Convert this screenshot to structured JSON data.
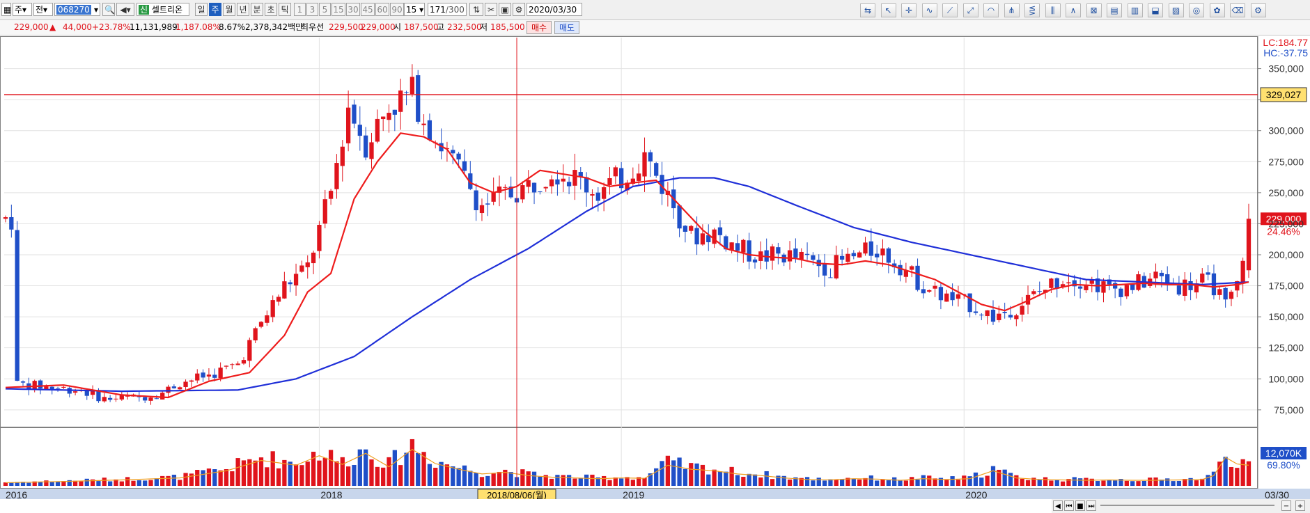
{
  "toolbar": {
    "market": "주",
    "type": "전",
    "code": "068270",
    "badge": "신",
    "name": "셀트리온",
    "periods": [
      "일",
      "주",
      "월",
      "년",
      "분",
      "초",
      "틱"
    ],
    "active_period": "주",
    "intervals": [
      "1",
      "3",
      "5",
      "15",
      "30",
      "45",
      "60",
      "90"
    ],
    "interval_value": "15",
    "count": "171",
    "count_total": "/300",
    "date": "2020/03/30",
    "tool_icons": [
      "refresh-icon",
      "cursor-icon",
      "crosshair-icon",
      "line-icon",
      "trend-line-icon",
      "ray-icon",
      "arc-icon",
      "fan-icon",
      "fibonacci-icon",
      "vertical-lines-icon",
      "triangle-icon",
      "grid-icon",
      "envelope-icon",
      "channel-icon",
      "marker-icon",
      "fill-icon",
      "circle-icon",
      "palette-icon",
      "eraser-icon",
      "settings-icon"
    ]
  },
  "quote": {
    "price": "229,000",
    "change": "44,000",
    "change_pct": "+23.78%",
    "volume": "11,131,989",
    "volume_pct": "1,187.08%",
    "turnover_pct": "8.67%",
    "amount": "2,378,342백만",
    "pref_label": "최우선",
    "ask": "229,500",
    "bid": "229,000",
    "open_label": "시",
    "open": "187,500",
    "high_label": "고",
    "high": "232,500",
    "low_label": "저",
    "low": "185,500",
    "buy_label": "매수",
    "sell_label": "매도",
    "up_arrow": "▲"
  },
  "chart_data": {
    "type": "candlestick",
    "title": "",
    "interval": "weekly",
    "x_labels": [
      "2016",
      "2018",
      "2019",
      "2020",
      "03/30"
    ],
    "y_ticks": [
      75000,
      100000,
      125000,
      150000,
      175000,
      200000,
      225000,
      250000,
      275000,
      300000,
      325000,
      350000
    ],
    "y_tick_labels": [
      "75,000",
      "100,000",
      "125,000",
      "150,000",
      "175,000",
      "200,000",
      "225,000",
      "250,000",
      "275,000",
      "300,000",
      "",
      "350,000"
    ],
    "ylim": [
      62000,
      375000
    ],
    "lc": "LC:184.77",
    "hc": "HC:-37.75",
    "hline_value": 329027,
    "hline_label": "329,027",
    "last_price_label": "229,000",
    "last_change_label": "24.46%",
    "crosshair_date": "2018/08/06(월)",
    "ma_red": "short moving average",
    "ma_blue": "long moving average",
    "volume_label": "12,070K",
    "volume_pct_label": "69.80%",
    "anchors": [
      [
        2,
        96000
      ],
      [
        8,
        93000
      ],
      [
        13,
        91000
      ],
      [
        17,
        84000
      ],
      [
        23,
        85000
      ],
      [
        27,
        89000
      ],
      [
        30,
        97000
      ],
      [
        35,
        103000
      ],
      [
        40,
        112000
      ],
      [
        44,
        145000
      ],
      [
        48,
        175000
      ],
      [
        52,
        190000
      ],
      [
        56,
        250000
      ],
      [
        59,
        320000
      ],
      [
        62,
        290000
      ],
      [
        66,
        320000
      ],
      [
        70,
        330000
      ],
      [
        74,
        295000
      ],
      [
        78,
        268000
      ],
      [
        82,
        240000
      ],
      [
        86,
        248000
      ],
      [
        90,
        255000
      ],
      [
        94,
        270000
      ],
      [
        98,
        262000
      ],
      [
        102,
        250000
      ],
      [
        106,
        262000
      ],
      [
        110,
        280000
      ],
      [
        114,
        248000
      ],
      [
        118,
        215000
      ],
      [
        122,
        218000
      ],
      [
        126,
        205000
      ],
      [
        130,
        198000
      ],
      [
        134,
        200000
      ],
      [
        138,
        195000
      ],
      [
        142,
        190000
      ],
      [
        146,
        198000
      ],
      [
        150,
        205000
      ],
      [
        154,
        192000
      ],
      [
        158,
        175000
      ],
      [
        162,
        165000
      ],
      [
        166,
        160000
      ],
      [
        170,
        150000
      ],
      [
        174,
        158000
      ],
      [
        178,
        170000
      ],
      [
        182,
        182000
      ],
      [
        186,
        180000
      ],
      [
        190,
        172000
      ],
      [
        194,
        175000
      ],
      [
        198,
        182000
      ],
      [
        202,
        175000
      ],
      [
        206,
        178000
      ],
      [
        208,
        175000
      ],
      [
        210,
        158000
      ],
      [
        212,
        175000
      ],
      [
        214,
        229000
      ]
    ],
    "red_ma": [
      [
        0,
        93000
      ],
      [
        10,
        95000
      ],
      [
        20,
        87000
      ],
      [
        28,
        85000
      ],
      [
        35,
        98000
      ],
      [
        42,
        105000
      ],
      [
        48,
        135000
      ],
      [
        52,
        170000
      ],
      [
        56,
        185000
      ],
      [
        60,
        245000
      ],
      [
        64,
        275000
      ],
      [
        68,
        298000
      ],
      [
        72,
        295000
      ],
      [
        76,
        285000
      ],
      [
        80,
        258000
      ],
      [
        84,
        250000
      ],
      [
        88,
        255000
      ],
      [
        92,
        268000
      ],
      [
        96,
        265000
      ],
      [
        100,
        262000
      ],
      [
        104,
        255000
      ],
      [
        108,
        258000
      ],
      [
        112,
        260000
      ],
      [
        116,
        240000
      ],
      [
        120,
        220000
      ],
      [
        124,
        205000
      ],
      [
        128,
        200000
      ],
      [
        132,
        198000
      ],
      [
        136,
        197000
      ],
      [
        140,
        193000
      ],
      [
        144,
        192000
      ],
      [
        148,
        195000
      ],
      [
        152,
        192000
      ],
      [
        156,
        186000
      ],
      [
        160,
        180000
      ],
      [
        164,
        170000
      ],
      [
        168,
        160000
      ],
      [
        172,
        155000
      ],
      [
        176,
        163000
      ],
      [
        180,
        172000
      ],
      [
        184,
        176000
      ],
      [
        188,
        175000
      ],
      [
        192,
        176000
      ],
      [
        196,
        177000
      ],
      [
        200,
        176000
      ],
      [
        204,
        176000
      ],
      [
        208,
        174000
      ],
      [
        212,
        176000
      ],
      [
        214,
        178000
      ]
    ],
    "blue_ma": [
      [
        0,
        92000
      ],
      [
        20,
        90000
      ],
      [
        40,
        91000
      ],
      [
        50,
        100000
      ],
      [
        60,
        118000
      ],
      [
        70,
        150000
      ],
      [
        80,
        180000
      ],
      [
        90,
        205000
      ],
      [
        100,
        235000
      ],
      [
        108,
        255000
      ],
      [
        116,
        262000
      ],
      [
        122,
        262000
      ],
      [
        128,
        255000
      ],
      [
        136,
        240000
      ],
      [
        146,
        222000
      ],
      [
        156,
        210000
      ],
      [
        166,
        200000
      ],
      [
        176,
        190000
      ],
      [
        186,
        180000
      ],
      [
        196,
        178000
      ],
      [
        206,
        176000
      ],
      [
        214,
        178000
      ]
    ],
    "volume_ylim": [
      0,
      1000
    ],
    "volume_profile": [
      [
        0,
        80
      ],
      [
        10,
        110
      ],
      [
        20,
        150
      ],
      [
        30,
        200
      ],
      [
        38,
        380
      ],
      [
        44,
        640
      ],
      [
        50,
        520
      ],
      [
        54,
        760
      ],
      [
        58,
        540
      ],
      [
        62,
        820
      ],
      [
        66,
        480
      ],
      [
        70,
        920
      ],
      [
        74,
        560
      ],
      [
        78,
        420
      ],
      [
        82,
        300
      ],
      [
        86,
        340
      ],
      [
        90,
        260
      ],
      [
        94,
        220
      ],
      [
        98,
        200
      ],
      [
        102,
        180
      ],
      [
        106,
        200
      ],
      [
        110,
        190
      ],
      [
        114,
        520
      ],
      [
        118,
        420
      ],
      [
        122,
        380
      ],
      [
        126,
        300
      ],
      [
        130,
        260
      ],
      [
        134,
        200
      ],
      [
        138,
        160
      ],
      [
        142,
        150
      ],
      [
        146,
        180
      ],
      [
        150,
        170
      ],
      [
        154,
        140
      ],
      [
        158,
        180
      ],
      [
        162,
        160
      ],
      [
        166,
        180
      ],
      [
        170,
        380
      ],
      [
        174,
        200
      ],
      [
        178,
        160
      ],
      [
        182,
        150
      ],
      [
        186,
        140
      ],
      [
        190,
        150
      ],
      [
        194,
        140
      ],
      [
        198,
        140
      ],
      [
        202,
        150
      ],
      [
        206,
        160
      ],
      [
        208,
        260
      ],
      [
        210,
        720
      ],
      [
        212,
        550
      ],
      [
        214,
        520
      ]
    ]
  },
  "scroll": {
    "icons": [
      "scroll-left-icon",
      "scroll-first-icon",
      "stop-icon",
      "scroll-last-icon",
      "zoom-out-icon",
      "zoom-in-icon"
    ]
  }
}
